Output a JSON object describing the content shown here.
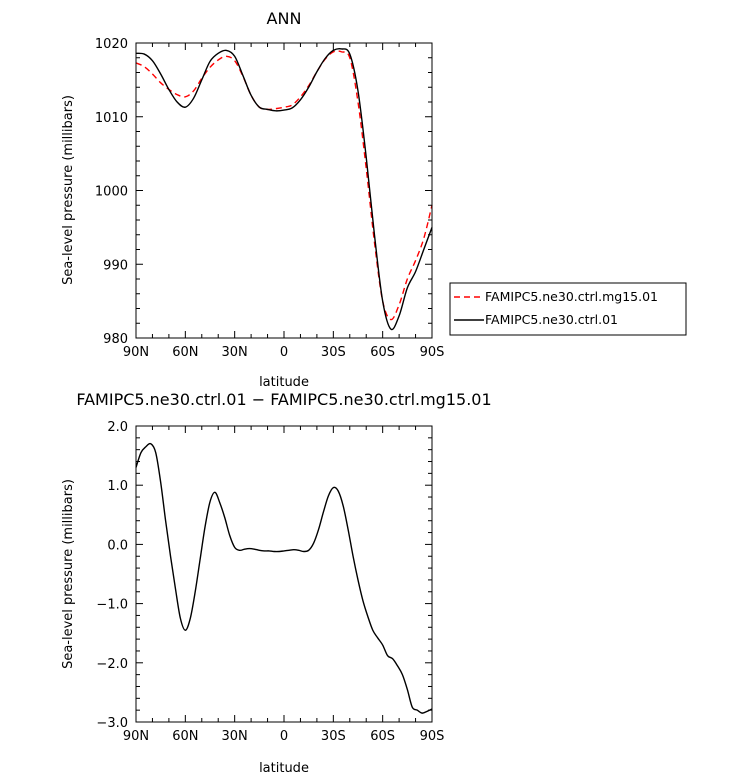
{
  "chart_data": [
    {
      "type": "line",
      "title": "ANN",
      "xlabel": "latitude",
      "ylabel": "Sea-level pressure (millibars)",
      "xlim": [
        90,
        -90
      ],
      "ylim": [
        980,
        1020
      ],
      "xticks": [
        90,
        60,
        30,
        0,
        -30,
        -60,
        -90
      ],
      "xtick_labels": [
        "90N",
        "60N",
        "30N",
        "0",
        "30S",
        "60S",
        "90S"
      ],
      "yticks": [
        980,
        990,
        1000,
        1010,
        1020
      ],
      "ytick_labels": [
        "980",
        "990",
        "1000",
        "1010",
        "1020"
      ],
      "grid": false,
      "legend_position": "right",
      "series": [
        {
          "name": "FAMIPC5.ne30.ctrl.mg15.01",
          "color": "#ff0000",
          "dash": "dashed",
          "x": [
            90,
            85,
            80,
            75,
            70,
            65,
            60,
            55,
            50,
            45,
            40,
            35,
            30,
            25,
            20,
            15,
            10,
            5,
            0,
            -5,
            -10,
            -15,
            -20,
            -25,
            -30,
            -35,
            -40,
            -45,
            -50,
            -55,
            -60,
            -65,
            -70,
            -75,
            -80,
            -85,
            -90
          ],
          "y": [
            1017.3,
            1016.8,
            1015.8,
            1014.6,
            1013.7,
            1013.0,
            1012.7,
            1013.5,
            1015.2,
            1016.7,
            1017.7,
            1018.2,
            1017.6,
            1015.5,
            1012.9,
            1011.3,
            1011.0,
            1011.1,
            1011.3,
            1011.6,
            1012.7,
            1014.2,
            1016.1,
            1017.8,
            1018.8,
            1018.8,
            1018.0,
            1012.0,
            1003.0,
            993.0,
            985.0,
            982.5,
            984.5,
            988.0,
            990.5,
            993.5,
            998.0
          ]
        },
        {
          "name": "FAMIPC5.ne30.ctrl.01",
          "color": "#000000",
          "dash": "solid",
          "x": [
            90,
            85,
            80,
            75,
            70,
            65,
            60,
            55,
            50,
            45,
            40,
            35,
            30,
            25,
            20,
            15,
            10,
            5,
            0,
            -5,
            -10,
            -15,
            -20,
            -25,
            -30,
            -35,
            -40,
            -45,
            -50,
            -55,
            -60,
            -65,
            -70,
            -75,
            -80,
            -85,
            -90
          ],
          "y": [
            1018.6,
            1018.5,
            1017.6,
            1015.8,
            1013.7,
            1012.0,
            1011.3,
            1012.5,
            1015.0,
            1017.5,
            1018.6,
            1019.0,
            1018.2,
            1015.6,
            1012.9,
            1011.3,
            1011.0,
            1010.8,
            1010.9,
            1011.2,
            1012.3,
            1014.0,
            1016.1,
            1017.9,
            1019.0,
            1019.2,
            1018.5,
            1013.5,
            1004.5,
            994.0,
            985.0,
            981.2,
            983.0,
            986.8,
            989.0,
            992.0,
            995.0
          ]
        }
      ]
    },
    {
      "type": "line",
      "title": "FAMIPC5.ne30.ctrl.01 − FAMIPC5.ne30.ctrl.mg15.01",
      "xlabel": "latitude",
      "ylabel": "Sea-level pressure (millibars)",
      "xlim": [
        90,
        -90
      ],
      "ylim": [
        -3.0,
        2.0
      ],
      "xticks": [
        90,
        60,
        30,
        0,
        -30,
        -60,
        -90
      ],
      "xtick_labels": [
        "90N",
        "60N",
        "30N",
        "0",
        "30S",
        "60S",
        "90S"
      ],
      "yticks": [
        -3.0,
        -2.0,
        -1.0,
        0.0,
        1.0,
        2.0
      ],
      "ytick_labels": [
        "−3.0",
        "−2.0",
        "−1.0",
        "0.0",
        "1.0",
        "2.0"
      ],
      "grid": false,
      "series": [
        {
          "color": "#000000",
          "dash": "solid",
          "x": [
            90,
            87,
            84,
            81,
            78,
            75,
            72,
            69,
            66,
            63,
            60,
            57,
            54,
            51,
            48,
            45,
            42,
            39,
            36,
            33,
            30,
            27,
            24,
            21,
            18,
            15,
            12,
            9,
            6,
            3,
            0,
            -3,
            -6,
            -9,
            -12,
            -15,
            -18,
            -21,
            -24,
            -27,
            -30,
            -33,
            -36,
            -39,
            -42,
            -45,
            -48,
            -51,
            -54,
            -57,
            -60,
            -63,
            -66,
            -69,
            -72,
            -75,
            -78,
            -81,
            -84,
            -87,
            -90
          ],
          "y": [
            1.3,
            1.55,
            1.65,
            1.7,
            1.55,
            1.05,
            0.4,
            -0.2,
            -0.75,
            -1.25,
            -1.45,
            -1.25,
            -0.8,
            -0.25,
            0.3,
            0.72,
            0.88,
            0.7,
            0.45,
            0.15,
            -0.05,
            -0.1,
            -0.08,
            -0.07,
            -0.08,
            -0.1,
            -0.11,
            -0.11,
            -0.12,
            -0.12,
            -0.11,
            -0.1,
            -0.09,
            -0.1,
            -0.12,
            -0.1,
            0.02,
            0.25,
            0.55,
            0.82,
            0.96,
            0.9,
            0.65,
            0.25,
            -0.2,
            -0.6,
            -0.95,
            -1.22,
            -1.45,
            -1.58,
            -1.7,
            -1.88,
            -1.93,
            -2.05,
            -2.2,
            -2.45,
            -2.75,
            -2.8,
            -2.85,
            -2.82,
            -2.78
          ]
        }
      ]
    }
  ]
}
